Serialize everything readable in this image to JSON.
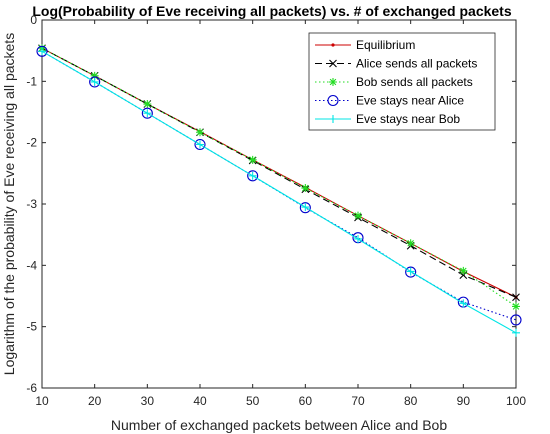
{
  "chart_data": {
    "type": "line",
    "title": "Log(Probability of Eve receiving all packets) vs. # of exchanged packets",
    "xlabel": "Number of exchanged packets between Alice and Bob",
    "ylabel": "Logarithm of the probability of Eve receiving all packets",
    "xlim": [
      10,
      100
    ],
    "ylim": [
      -6,
      0
    ],
    "x_ticks": [
      "10",
      "20",
      "30",
      "40",
      "50",
      "60",
      "70",
      "80",
      "90",
      "100"
    ],
    "y_ticks": [
      "0",
      "-1",
      "-2",
      "-3",
      "-4",
      "-5",
      "-6"
    ],
    "grid": false,
    "legend_position": "top-right",
    "x": [
      10,
      20,
      30,
      40,
      50,
      60,
      70,
      80,
      90,
      100
    ],
    "series": [
      {
        "name": "Equilibrium",
        "color": "#cc0000",
        "line": "solid",
        "marker": "dot",
        "values": [
          -0.46,
          -0.91,
          -1.37,
          -1.82,
          -2.28,
          -2.73,
          -3.19,
          -3.64,
          -4.1,
          -4.52
        ]
      },
      {
        "name": "Alice sends all packets",
        "color": "#000000",
        "line": "dashed",
        "marker": "x",
        "values": [
          -0.46,
          -0.91,
          -1.37,
          -1.83,
          -2.29,
          -2.76,
          -3.22,
          -3.68,
          -4.16,
          -4.52
        ]
      },
      {
        "name": "Bob sends all packets",
        "color": "#22dd22",
        "line": "dotted",
        "marker": "star",
        "values": [
          -0.46,
          -0.91,
          -1.37,
          -1.83,
          -2.28,
          -2.74,
          -3.19,
          -3.64,
          -4.09,
          -4.67
        ]
      },
      {
        "name": "Eve stays near Alice",
        "color": "#0000cc",
        "line": "dotted",
        "marker": "circle",
        "values": [
          -0.51,
          -1.01,
          -1.52,
          -2.03,
          -2.54,
          -3.06,
          -3.55,
          -4.11,
          -4.6,
          -4.89
        ]
      },
      {
        "name": "Eve stays near Bob",
        "color": "#00e5e5",
        "line": "solid",
        "marker": "plus",
        "values": [
          -0.51,
          -1.01,
          -1.52,
          -2.03,
          -2.54,
          -3.05,
          -3.57,
          -4.1,
          -4.62,
          -5.1
        ]
      }
    ]
  }
}
